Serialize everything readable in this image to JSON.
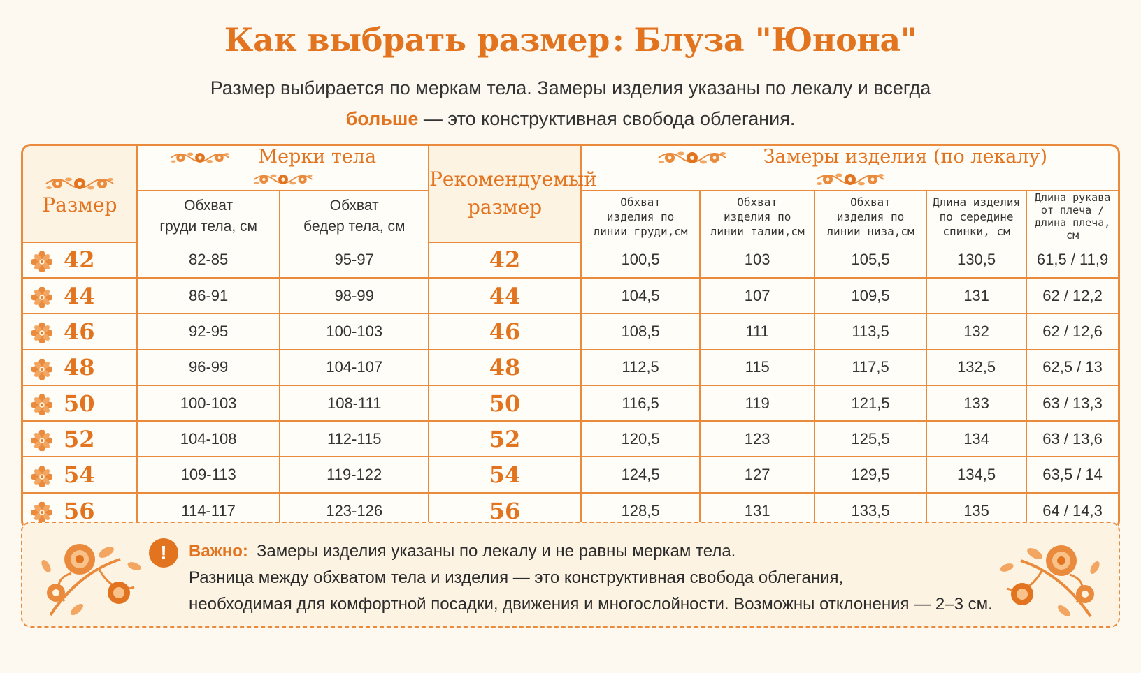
{
  "page": {
    "title_left": "Как выбрать размер",
    "title_sep": ":",
    "title_right": "Блуза \"Юнона\"",
    "subtitle_line1": "Размер выбирается по меркам тела. Замеры изделия указаны по лекалу и всегда",
    "subtitle_bold": "больше",
    "subtitle_rest": " — это конструктивная свобода облегания."
  },
  "table": {
    "col_size": "Размер",
    "group_body": "Мерки тела",
    "col_chest_body": [
      "Обхват",
      "груди тела, см"
    ],
    "col_hips_body": [
      "Обхват",
      "бедер тела, см"
    ],
    "col_recommended": [
      "Рекомендуемый",
      "размер"
    ],
    "group_garment": "Замеры изделия (по лекалу)",
    "col_chest_garment": [
      "Обхват",
      "изделия по",
      "линии груди,см"
    ],
    "col_waist_garment": [
      "Обхват",
      "изделия по",
      "линии талии,см"
    ],
    "col_hem_garment": [
      "Обхват",
      "изделия по",
      "линии низа,см"
    ],
    "col_length": [
      "Длина изделия",
      "по середине",
      "спинки, см"
    ],
    "col_sleeve": [
      "Длина рукава",
      "от плеча /",
      "длина плеча,",
      "см"
    ],
    "rows": [
      {
        "size": "42",
        "chest": "82-85",
        "hips": "95-97",
        "rec": "42",
        "g_chest": "100,5",
        "g_waist": "103",
        "g_hem": "105,5",
        "length": "130,5",
        "sleeve": "61,5 / 11,9"
      },
      {
        "size": "44",
        "chest": "86-91",
        "hips": "98-99",
        "rec": "44",
        "g_chest": "104,5",
        "g_waist": "107",
        "g_hem": "109,5",
        "length": "131",
        "sleeve": "62 / 12,2"
      },
      {
        "size": "46",
        "chest": "92-95",
        "hips": "100-103",
        "rec": "46",
        "g_chest": "108,5",
        "g_waist": "111",
        "g_hem": "113,5",
        "length": "132",
        "sleeve": "62 / 12,6"
      },
      {
        "size": "48",
        "chest": "96-99",
        "hips": "104-107",
        "rec": "48",
        "g_chest": "112,5",
        "g_waist": "115",
        "g_hem": "117,5",
        "length": "132,5",
        "sleeve": "62,5 / 13"
      },
      {
        "size": "50",
        "chest": "100-103",
        "hips": "108-111",
        "rec": "50",
        "g_chest": "116,5",
        "g_waist": "119",
        "g_hem": "121,5",
        "length": "133",
        "sleeve": "63 / 13,3"
      },
      {
        "size": "52",
        "chest": "104-108",
        "hips": "112-115",
        "rec": "52",
        "g_chest": "120,5",
        "g_waist": "123",
        "g_hem": "125,5",
        "length": "134",
        "sleeve": "63 / 13,6"
      },
      {
        "size": "54",
        "chest": "109-113",
        "hips": "119-122",
        "rec": "54",
        "g_chest": "124,5",
        "g_waist": "127",
        "g_hem": "129,5",
        "length": "134,5",
        "sleeve": "63,5 / 14"
      },
      {
        "size": "56",
        "chest": "114-117",
        "hips": "123-126",
        "rec": "56",
        "g_chest": "128,5",
        "g_waist": "131",
        "g_hem": "133,5",
        "length": "135",
        "sleeve": "64 / 14,3"
      }
    ]
  },
  "note": {
    "label": "Важно:",
    "line1": "Замеры изделия указаны по лекалу и не равны меркам тела.",
    "line2": "Разница между обхватом тела и изделия — это конструктивная свобода облегания,",
    "line3": "необходимая для комфортной посадки, движения и многослойности. Возможны отклонения — 2–3 см.",
    "icon": "exclamation-icon"
  },
  "colors": {
    "accent": "#e2731f",
    "border": "#e98a3c",
    "background": "#fdf9f0",
    "panel": "#fdf3e3"
  }
}
